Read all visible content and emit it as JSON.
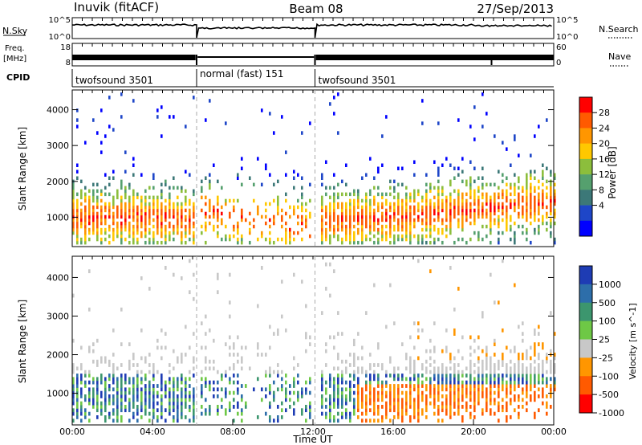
{
  "header": {
    "radar": "Inuvik (fitACF)",
    "beam": "Beam 08",
    "date": "27/Sep/2013"
  },
  "top_panels": {
    "nsky_label": "N.Sky",
    "nsearch_label": "N.Search",
    "nsky_ticks": [
      "10^5",
      "10^0"
    ],
    "nsearch_ticks": [
      "10^5",
      "10^0"
    ],
    "freq_label_line1": "Freq.",
    "freq_label_line2": "[MHz]",
    "freq_ticks": [
      "18",
      "8"
    ],
    "nave_label": "Nave",
    "nave_ticks": [
      "60",
      "0"
    ],
    "cpid_label": "CPID",
    "cpid_segments": [
      {
        "label": "twofsound 3501",
        "start_hour": 0,
        "end_hour": 6.2
      },
      {
        "label": "normal (fast) 151",
        "start_hour": 6.2,
        "end_hour": 12.1
      },
      {
        "label": "twofsound 3501",
        "start_hour": 12.1,
        "end_hour": 24
      }
    ]
  },
  "chart_data": [
    {
      "type": "heatmap",
      "name": "power-panel",
      "ylabel": "Slant Range [km]",
      "yticks": [
        1000,
        2000,
        3000,
        4000
      ],
      "ylim": [
        180,
        4550
      ],
      "xlim": [
        0,
        24
      ],
      "colorbar": {
        "label": "Power [dB]",
        "ticks": [
          "28",
          "24",
          "20",
          "16",
          "12",
          "8",
          "4"
        ],
        "colors": [
          "#ff0000",
          "#ff5a00",
          "#ff9600",
          "#ffc800",
          "#8cbe3c",
          "#55a06e",
          "#3c7878",
          "#1e46c8",
          "#0000ff"
        ]
      }
    },
    {
      "type": "heatmap",
      "name": "velocity-panel",
      "ylabel": "Slant Range [km]",
      "yticks": [
        1000,
        2000,
        3000,
        4000
      ],
      "ylim": [
        180,
        4550
      ],
      "xlim": [
        0,
        24
      ],
      "colorbar": {
        "label": "Velocity [m s^-1]",
        "ticks": [
          "1000",
          "500",
          "100",
          "25",
          "-25",
          "-100",
          "-500",
          "-1000"
        ],
        "colors": [
          "#1e3cb4",
          "#2d6eaa",
          "#3c966e",
          "#6ec846",
          "#c8c8c8",
          "#ff9600",
          "#ff5a00",
          "#ff0000"
        ]
      }
    }
  ],
  "time_axis": {
    "ticks": [
      "00:00",
      "04:00",
      "08:00",
      "12:00",
      "16:00",
      "20:00",
      "00:00"
    ],
    "label": "Time UT"
  }
}
